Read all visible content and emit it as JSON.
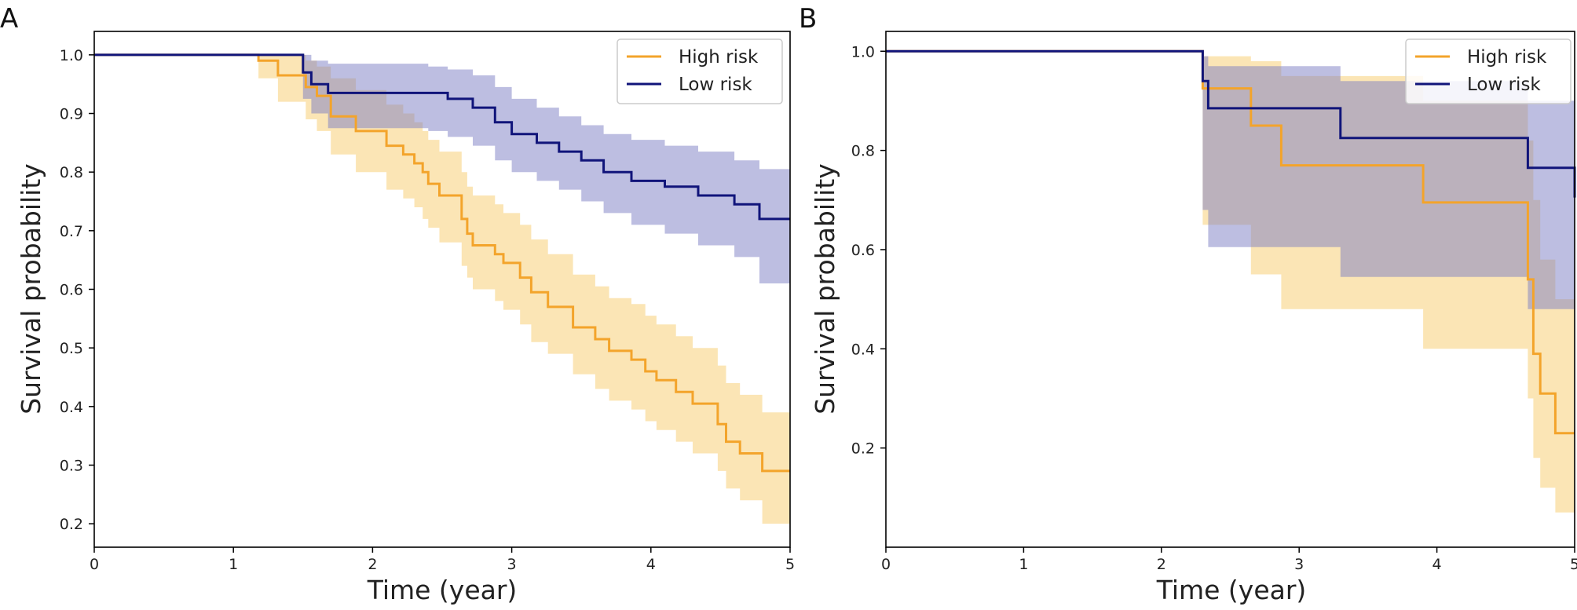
{
  "colors": {
    "high_risk": "#f3a42b",
    "high_risk_band": "#f6c55a",
    "low_risk": "#10147a",
    "low_risk_band": "#7b7ec4",
    "axis": "#000000"
  },
  "chart_data": [
    {
      "panel": "A",
      "type": "line",
      "subtype": "kaplan-meier step",
      "xlabel": "Time (year)",
      "ylabel": "Survival probability",
      "xlim": [
        0,
        5
      ],
      "ylim": [
        0.16,
        1.04
      ],
      "xticks": [
        0,
        1,
        2,
        3,
        4,
        5
      ],
      "yticks": [
        0.2,
        0.3,
        0.4,
        0.5,
        0.6,
        0.7,
        0.8,
        0.9,
        1.0
      ],
      "xtick_labels": [
        "0",
        "1",
        "2",
        "3",
        "4",
        "5"
      ],
      "ytick_labels": [
        "0.2",
        "0.3",
        "0.4",
        "0.5",
        "0.6",
        "0.7",
        "0.8",
        "0.9",
        "1.0"
      ],
      "grid": false,
      "legend_position": "top-right",
      "series": [
        {
          "name": "High risk",
          "color_key": "high_risk",
          "x": [
            0,
            1.18,
            1.32,
            1.52,
            1.6,
            1.7,
            1.88,
            2.1,
            2.22,
            2.3,
            2.36,
            2.4,
            2.48,
            2.64,
            2.68,
            2.72,
            2.88,
            2.94,
            3.06,
            3.14,
            3.26,
            3.44,
            3.6,
            3.7,
            3.86,
            3.96,
            4.04,
            4.18,
            4.3,
            4.48,
            4.54,
            4.64,
            4.8,
            5
          ],
          "y": [
            1.0,
            0.99,
            0.965,
            0.945,
            0.93,
            0.895,
            0.87,
            0.845,
            0.83,
            0.815,
            0.8,
            0.78,
            0.76,
            0.72,
            0.695,
            0.675,
            0.66,
            0.645,
            0.62,
            0.595,
            0.57,
            0.535,
            0.515,
            0.495,
            0.48,
            0.46,
            0.445,
            0.425,
            0.405,
            0.37,
            0.34,
            0.32,
            0.29,
            0.29
          ],
          "ci_upper": [
            1.0,
            1.0,
            1.0,
            0.99,
            0.98,
            0.96,
            0.94,
            0.915,
            0.9,
            0.885,
            0.87,
            0.855,
            0.835,
            0.8,
            0.775,
            0.76,
            0.745,
            0.73,
            0.71,
            0.685,
            0.66,
            0.625,
            0.605,
            0.585,
            0.575,
            0.555,
            0.54,
            0.52,
            0.5,
            0.47,
            0.44,
            0.42,
            0.39,
            0.39
          ],
          "ci_lower": [
            1.0,
            0.96,
            0.92,
            0.89,
            0.87,
            0.83,
            0.8,
            0.77,
            0.755,
            0.74,
            0.72,
            0.705,
            0.68,
            0.64,
            0.62,
            0.6,
            0.58,
            0.565,
            0.54,
            0.51,
            0.49,
            0.455,
            0.43,
            0.41,
            0.395,
            0.375,
            0.36,
            0.34,
            0.32,
            0.29,
            0.26,
            0.24,
            0.2,
            0.2
          ]
        },
        {
          "name": "Low risk",
          "color_key": "low_risk",
          "x": [
            0,
            1.5,
            1.56,
            1.68,
            2.4,
            2.54,
            2.72,
            2.88,
            3.0,
            3.18,
            3.34,
            3.5,
            3.66,
            3.86,
            4.1,
            4.34,
            4.6,
            4.78,
            5
          ],
          "y": [
            1.0,
            0.97,
            0.95,
            0.935,
            0.935,
            0.925,
            0.91,
            0.885,
            0.865,
            0.85,
            0.835,
            0.82,
            0.8,
            0.785,
            0.775,
            0.76,
            0.745,
            0.72,
            0.72
          ],
          "ci_upper": [
            1.0,
            1.0,
            0.99,
            0.985,
            0.98,
            0.975,
            0.965,
            0.945,
            0.925,
            0.91,
            0.895,
            0.88,
            0.865,
            0.855,
            0.845,
            0.835,
            0.82,
            0.805,
            0.805
          ],
          "ci_lower": [
            1.0,
            0.925,
            0.9,
            0.875,
            0.87,
            0.86,
            0.845,
            0.82,
            0.8,
            0.785,
            0.77,
            0.75,
            0.73,
            0.71,
            0.695,
            0.675,
            0.655,
            0.61,
            0.61
          ]
        }
      ]
    },
    {
      "panel": "B",
      "type": "line",
      "subtype": "kaplan-meier step",
      "xlabel": "Time (year)",
      "ylabel": "Survival probability",
      "xlim": [
        0,
        5
      ],
      "ylim": [
        0.0,
        1.04
      ],
      "xticks": [
        0,
        1,
        2,
        3,
        4,
        5
      ],
      "yticks": [
        0.2,
        0.4,
        0.6,
        0.8,
        1.0
      ],
      "xtick_labels": [
        "0",
        "1",
        "2",
        "3",
        "4",
        "5"
      ],
      "ytick_labels": [
        "0.2",
        "0.4",
        "0.6",
        "0.8",
        "1.0"
      ],
      "grid": false,
      "legend_position": "top-right",
      "series": [
        {
          "name": "High risk",
          "color_key": "high_risk",
          "x": [
            0,
            2.3,
            2.65,
            2.87,
            3.9,
            4.66,
            4.7,
            4.75,
            4.86,
            5
          ],
          "y": [
            1.0,
            0.925,
            0.85,
            0.77,
            0.695,
            0.54,
            0.39,
            0.31,
            0.23,
            0.23
          ],
          "ci_upper": [
            1.0,
            0.99,
            0.98,
            0.95,
            0.9,
            0.82,
            0.7,
            0.58,
            0.5,
            0.5
          ],
          "ci_lower": [
            1.0,
            0.65,
            0.55,
            0.48,
            0.4,
            0.3,
            0.18,
            0.12,
            0.07,
            0.07
          ]
        },
        {
          "name": "Low risk",
          "color_key": "low_risk",
          "x": [
            0,
            2.3,
            2.34,
            3.3,
            4.66,
            5
          ],
          "y": [
            1.0,
            0.94,
            0.885,
            0.825,
            0.765,
            0.705
          ],
          "ci_upper": [
            1.0,
            0.99,
            0.97,
            0.94,
            0.9,
            0.88
          ],
          "ci_lower": [
            1.0,
            0.68,
            0.605,
            0.545,
            0.48,
            0.45
          ]
        }
      ]
    }
  ]
}
